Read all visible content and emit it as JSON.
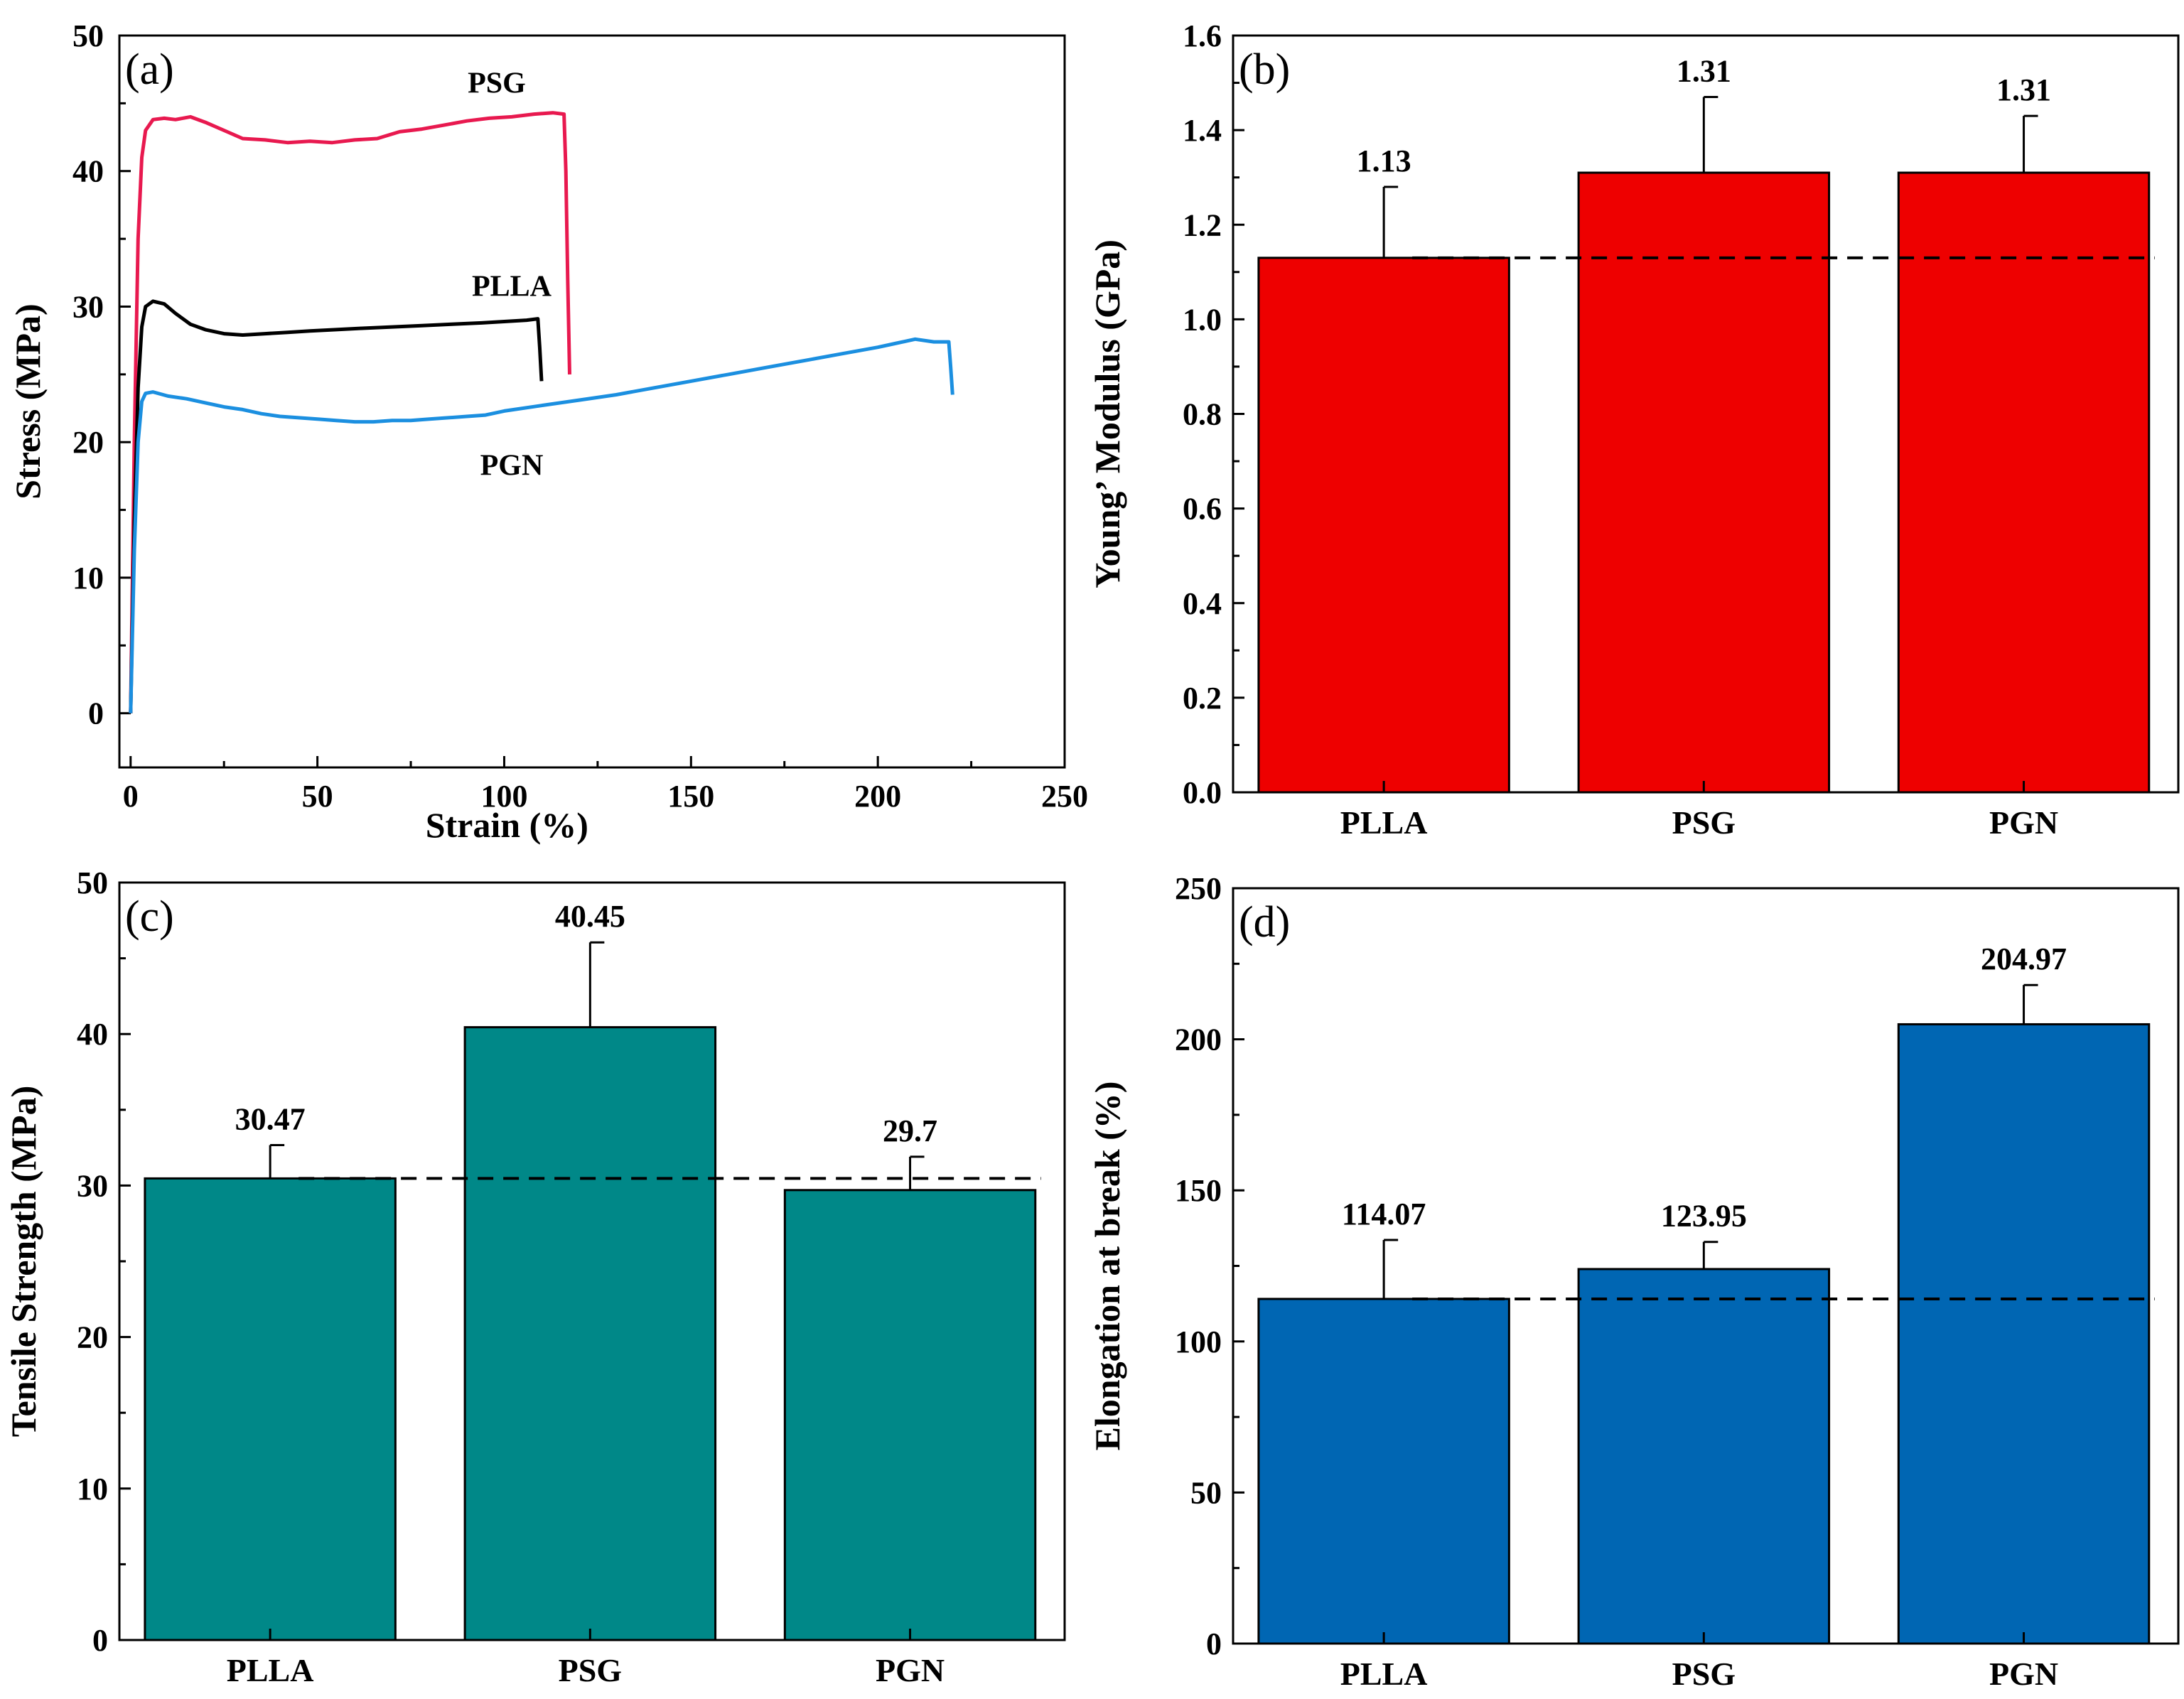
{
  "chart_data": [
    {
      "id": "a",
      "panel_label": "(a)",
      "type": "line",
      "xlabel": "Strain (%)",
      "ylabel": "Stress (MPa)",
      "xlim": [
        -3,
        250
      ],
      "ylim": [
        -4,
        50
      ],
      "xticks": [
        0,
        50,
        100,
        150,
        200,
        250
      ],
      "yticks": [
        0,
        10,
        20,
        30,
        40,
        50
      ],
      "series": [
        {
          "name": "PSG",
          "color": "#e8194f",
          "points": [
            [
              0,
              0
            ],
            [
              1,
              20
            ],
            [
              2,
              35
            ],
            [
              3,
              41
            ],
            [
              4,
              43
            ],
            [
              6,
              43.8
            ],
            [
              9,
              43.9
            ],
            [
              12,
              43.8
            ],
            [
              16,
              44
            ],
            [
              20,
              43.6
            ],
            [
              25,
              43
            ],
            [
              30,
              42.4
            ],
            [
              36,
              42.3
            ],
            [
              42,
              42.1
            ],
            [
              48,
              42.2
            ],
            [
              54,
              42.1
            ],
            [
              60,
              42.3
            ],
            [
              66,
              42.4
            ],
            [
              72,
              42.9
            ],
            [
              78,
              43.1
            ],
            [
              84,
              43.4
            ],
            [
              90,
              43.7
            ],
            [
              96,
              43.9
            ],
            [
              102,
              44
            ],
            [
              108,
              44.2
            ],
            [
              113,
              44.3
            ],
            [
              116,
              44.2
            ],
            [
              116.5,
              40
            ],
            [
              117,
              32
            ],
            [
              117.5,
              25
            ]
          ]
        },
        {
          "name": "PLLA",
          "color": "#000000",
          "points": [
            [
              0,
              0
            ],
            [
              1,
              14
            ],
            [
              2,
              24
            ],
            [
              3,
              28.5
            ],
            [
              4,
              30
            ],
            [
              6,
              30.4
            ],
            [
              9,
              30.2
            ],
            [
              12,
              29.5
            ],
            [
              16,
              28.7
            ],
            [
              20,
              28.3
            ],
            [
              25,
              28
            ],
            [
              30,
              27.9
            ],
            [
              36,
              28
            ],
            [
              42,
              28.1
            ],
            [
              48,
              28.2
            ],
            [
              55,
              28.3
            ],
            [
              62,
              28.4
            ],
            [
              70,
              28.5
            ],
            [
              78,
              28.6
            ],
            [
              86,
              28.7
            ],
            [
              94,
              28.8
            ],
            [
              100,
              28.9
            ],
            [
              106,
              29
            ],
            [
              109,
              29.1
            ],
            [
              109.5,
              27
            ],
            [
              110,
              24.5
            ]
          ]
        },
        {
          "name": "PGN",
          "color": "#1b8fe0",
          "points": [
            [
              0,
              0
            ],
            [
              1,
              12
            ],
            [
              2,
              20
            ],
            [
              3,
              23
            ],
            [
              4,
              23.6
            ],
            [
              6,
              23.7
            ],
            [
              10,
              23.4
            ],
            [
              15,
              23.2
            ],
            [
              20,
              22.9
            ],
            [
              25,
              22.6
            ],
            [
              30,
              22.4
            ],
            [
              35,
              22.1
            ],
            [
              40,
              21.9
            ],
            [
              45,
              21.8
            ],
            [
              50,
              21.7
            ],
            [
              55,
              21.6
            ],
            [
              60,
              21.5
            ],
            [
              65,
              21.5
            ],
            [
              70,
              21.6
            ],
            [
              75,
              21.6
            ],
            [
              80,
              21.7
            ],
            [
              85,
              21.8
            ],
            [
              90,
              21.9
            ],
            [
              95,
              22
            ],
            [
              100,
              22.3
            ],
            [
              110,
              22.7
            ],
            [
              120,
              23.1
            ],
            [
              130,
              23.5
            ],
            [
              140,
              24
            ],
            [
              150,
              24.5
            ],
            [
              160,
              25
            ],
            [
              170,
              25.5
            ],
            [
              180,
              26
            ],
            [
              190,
              26.5
            ],
            [
              200,
              27
            ],
            [
              205,
              27.3
            ],
            [
              210,
              27.6
            ],
            [
              215,
              27.4
            ],
            [
              219,
              27.4
            ],
            [
              219.5,
              25.5
            ],
            [
              220,
              23.5
            ]
          ]
        }
      ],
      "series_label_positions": "PSG above its curve, PLLA above its curve, PGN below its curve"
    },
    {
      "id": "b",
      "panel_label": "(b)",
      "type": "bar",
      "ylabel": "Young’ Modulus (GPa)",
      "ylim": [
        0,
        1.6
      ],
      "yticks": [
        "0.0",
        "0.2",
        "0.4",
        "0.6",
        "0.8",
        "1.0",
        "1.2",
        "1.4",
        "1.6"
      ],
      "categories": [
        "PLLA",
        "PSG",
        "PGN"
      ],
      "values": [
        1.13,
        1.31,
        1.31
      ],
      "errors": [
        0.15,
        0.16,
        0.12
      ],
      "labels": [
        "1.13",
        "1.31",
        "1.31"
      ],
      "color": "#ee0000",
      "reference_line": 1.13
    },
    {
      "id": "c",
      "panel_label": "(c)",
      "type": "bar",
      "ylabel": "Tensile Strength (MPa)",
      "ylim": [
        0,
        50
      ],
      "yticks": [
        "0",
        "10",
        "20",
        "30",
        "40",
        "50"
      ],
      "categories": [
        "PLLA",
        "PSG",
        "PGN"
      ],
      "values": [
        30.47,
        40.45,
        29.7
      ],
      "errors": [
        2.2,
        5.6,
        2.2
      ],
      "labels": [
        "30.47",
        "40.45",
        "29.7"
      ],
      "color": "#008888",
      "reference_line": 30.47
    },
    {
      "id": "d",
      "panel_label": "(d)",
      "type": "bar",
      "ylabel": "Elongation at break (%)",
      "ylim": [
        0,
        250
      ],
      "yticks": [
        "0",
        "50",
        "100",
        "150",
        "200",
        "250"
      ],
      "categories": [
        "PLLA",
        "PSG",
        "PGN"
      ],
      "values": [
        114.07,
        123.95,
        204.97
      ],
      "errors": [
        19.5,
        9,
        13
      ],
      "labels": [
        "114.07",
        "123.95",
        "204.97"
      ],
      "color": "#0066b3",
      "reference_line": 114.07
    }
  ]
}
